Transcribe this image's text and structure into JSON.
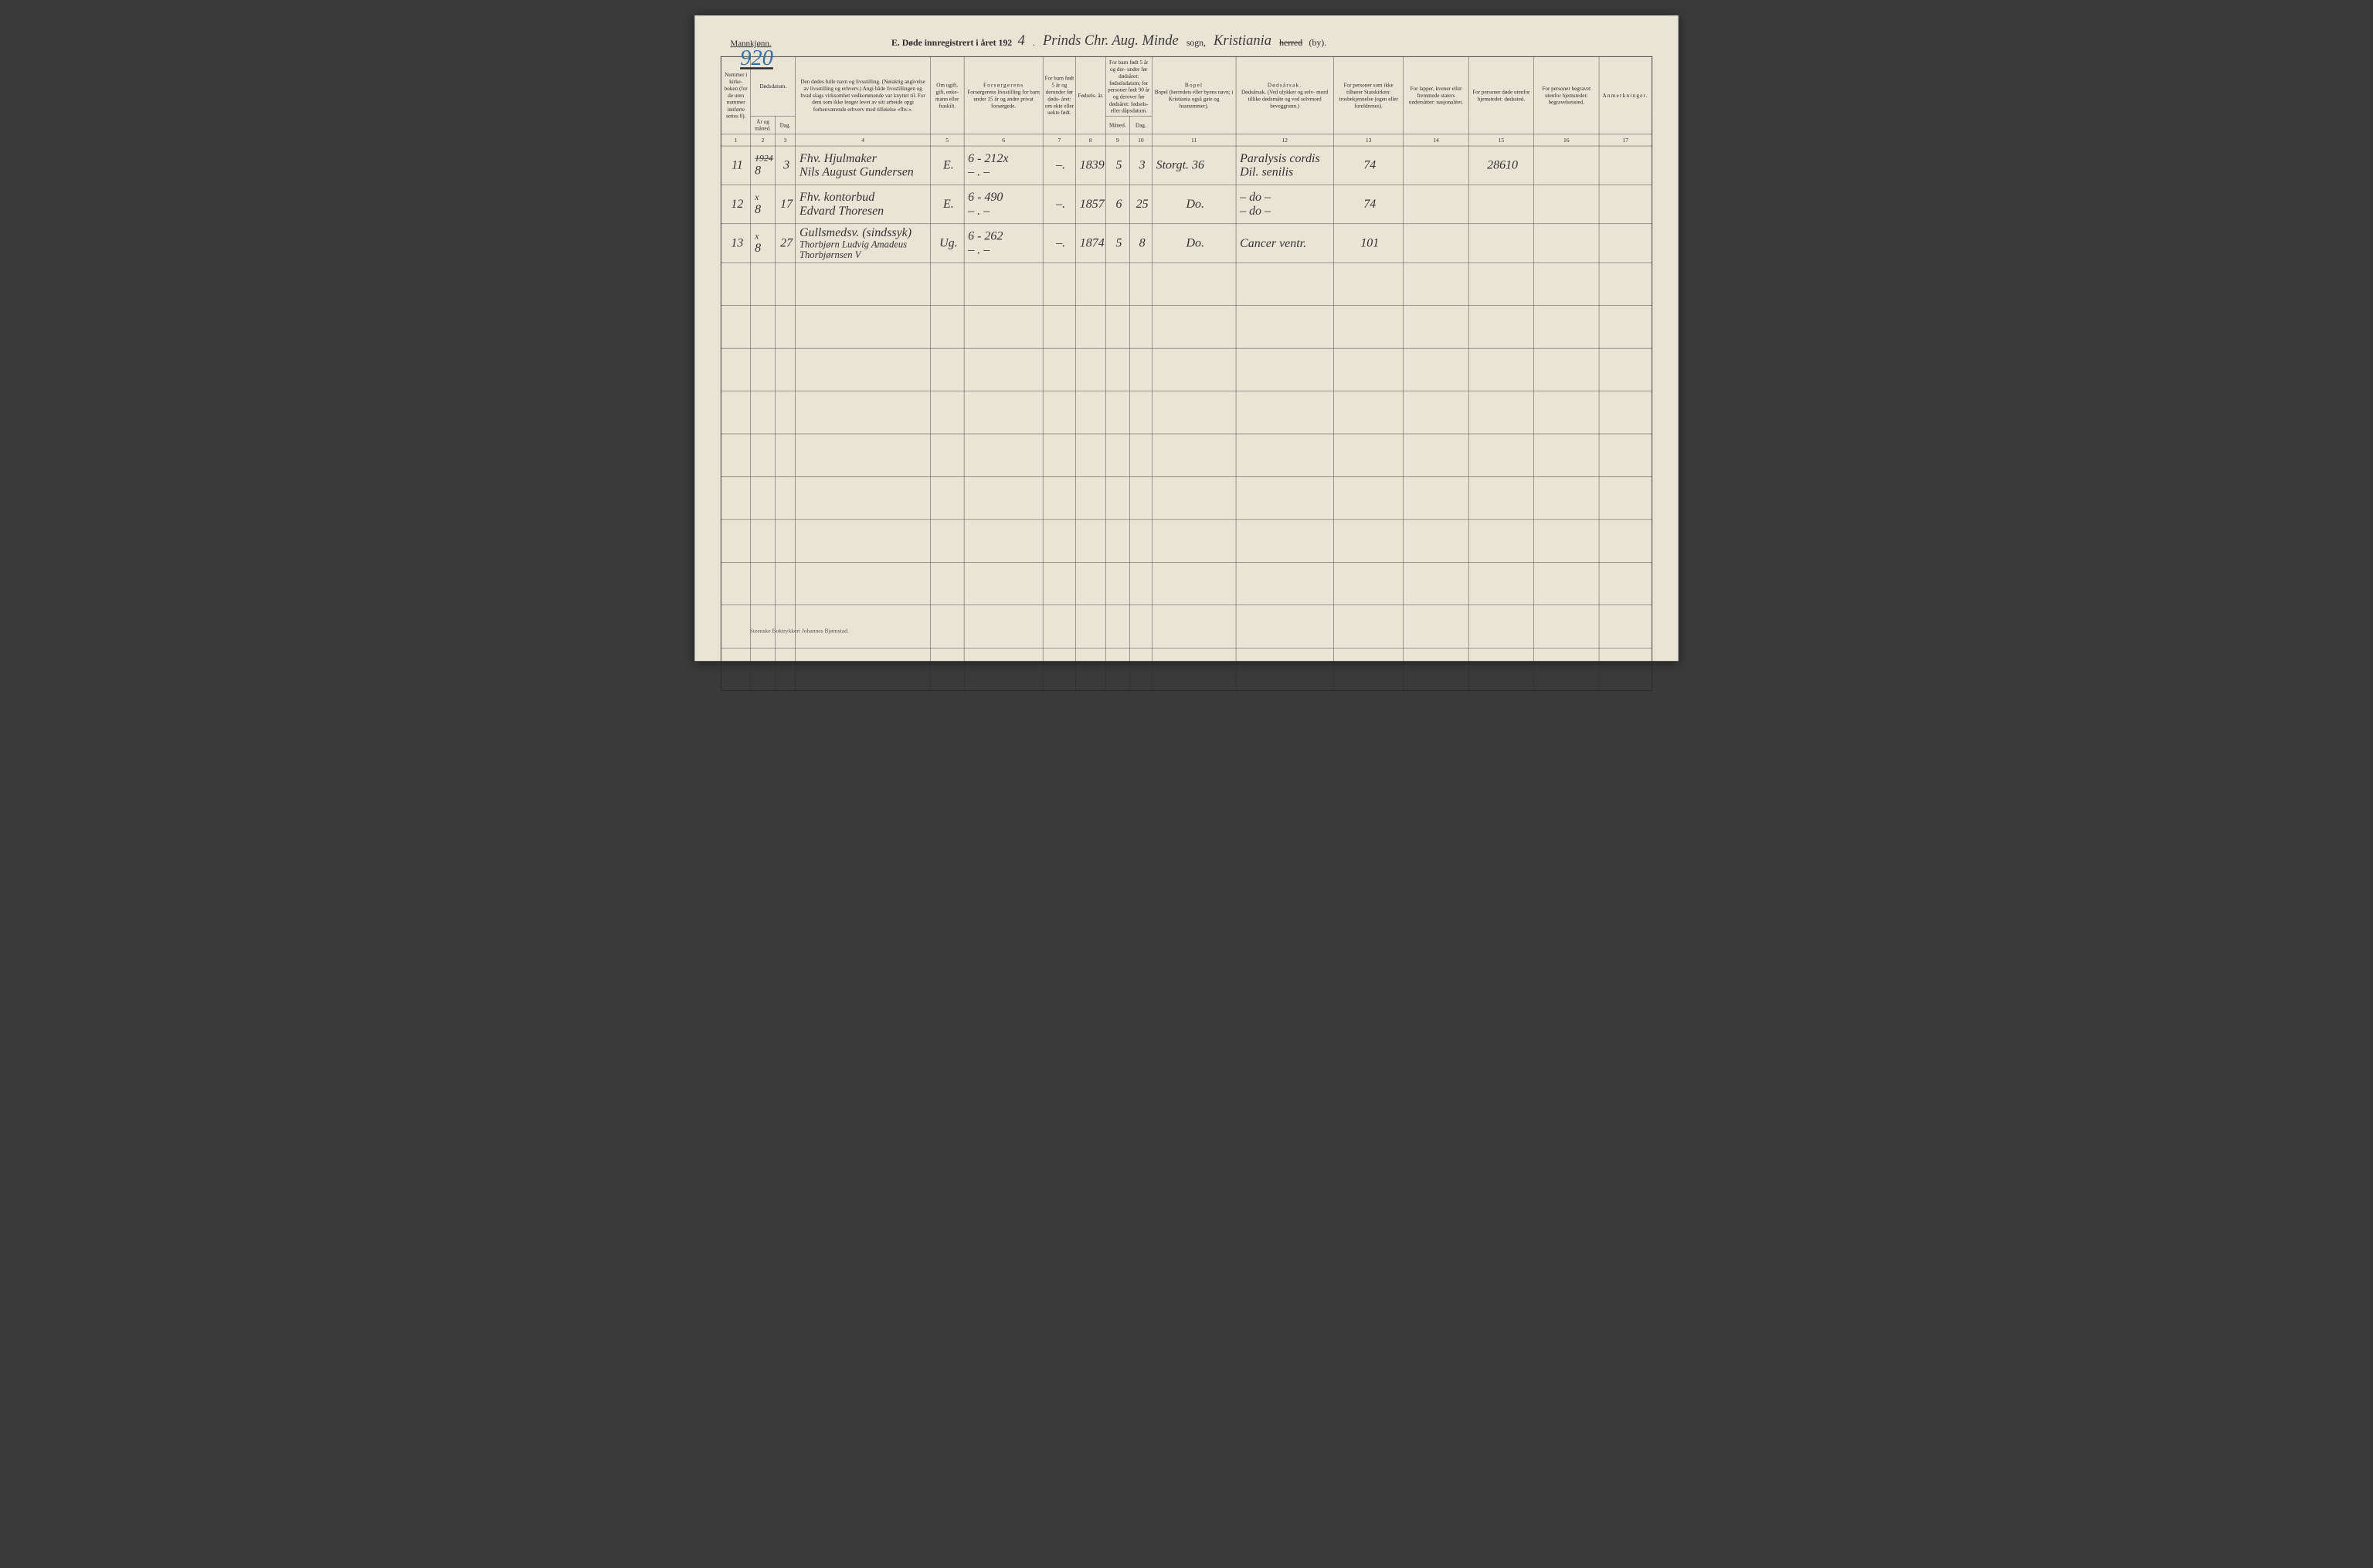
{
  "page": {
    "gender_label": "Mannkjønn.",
    "page_number": "920",
    "title_prefix": "E.  Døde innregistrert i året 192",
    "year_suffix": "4",
    "parish_hand": "Prinds Chr. Aug. Minde",
    "sogn_label": "sogn,",
    "city_hand": "Kristiania",
    "herred_label": "herred",
    "by_label": "(by).",
    "footer": "Steenske Boktrykkeri Johannes Bjørnstad."
  },
  "columns": {
    "c1": "Nummer i kirke- boken (for de uten nummer innførte settes 0).",
    "c2_top": "Dødsdatum.",
    "c2a": "År og måned.",
    "c2b": "Dag.",
    "c4": "Den dødes fulle navn og livsstilling.\n(Nøiaktig angivelse av livsstilling og erhverv.)\nAngi både livsstillingen og hvad slags virksomhet vedkommende var knyttet til.\nFor dem som ikke lenger levet av sitt arbeide opgi forhenværende erhverv med tilføielse «fhv.».",
    "c5": "Om ugift, gift, enke- mann eller fraskilt.",
    "c6": "Forsørgerens livsstilling\nfor barn under 15 år og andre privat forsørgede.",
    "c7": "For barn født 5 år og derunder før døds- året: om ekte eller uekte født.",
    "c8": "Fødsels- år.",
    "c9_top": "For barn født 5 år og der- under før dødsåret: fødselsdatum; for personer født 90 år og derover før dødsåret: fødsels- eller dåpsdatum.",
    "c9a": "Måned.",
    "c9b": "Dag.",
    "c11": "Bopel\n(herredets eller byens navn; i Kristiania også gate og husnummer).",
    "c12": "Dødsårsak.\n(Ved ulykker og selv- mord tillike dødsmåte og ved selvmord beveggrunn.)",
    "c13": "For personer som ikke tilhører Statskirken:\ntrosbekjennelse\n(egen eller foreldrenes).",
    "c14": "For lapper, kvener eller fremmede staters undersåtter:\nnasjonalitet.",
    "c15": "For personer døde utenfor hjemstedet:\ndødssted.",
    "c16": "For personer begravet utenfor hjemstedet:\nbegravelsessted.",
    "c17": "Anmerkninger."
  },
  "colnums": [
    "1",
    "2",
    "3",
    "4",
    "5",
    "6",
    "7",
    "8",
    "9",
    "10",
    "11",
    "12",
    "13",
    "14",
    "15",
    "16",
    "17"
  ],
  "rows": [
    {
      "num": "11",
      "year_strike": "1924",
      "month": "8",
      "day": "3",
      "name_line1": "Fhv. Hjulmaker",
      "name_line2": "Nils August Gundersen",
      "marital": "E.",
      "provider": "6 - 212x",
      "provider2": "– . –",
      "ekte": "–.",
      "birth_year": "1839",
      "b_month": "5",
      "b_day": "3",
      "bopel": "Storgt. 36",
      "cause_line1": "Paralysis cordis",
      "cause_line2": "Dil. senilis",
      "c13": "74",
      "c15": "28610"
    },
    {
      "num": "12",
      "year_strike": "x",
      "month": "8",
      "day": "17",
      "name_line1": "Fhv. kontorbud",
      "name_line2": "Edvard Thoresen",
      "marital": "E.",
      "provider": "6 - 490",
      "provider2": "– . –",
      "ekte": "–.",
      "birth_year": "1857",
      "b_month": "6",
      "b_day": "25",
      "bopel": "Do.",
      "cause_line1": "– do –",
      "cause_line2": "– do –",
      "c13": "74",
      "c15": ""
    },
    {
      "num": "13",
      "year_strike": "x",
      "month": "8",
      "day": "27",
      "name_line1": "Gullsmedsv. (sindssyk)",
      "name_line2": "Thorbjørn Ludvig Amadeus Thorbjørnsen V",
      "marital": "Ug.",
      "provider": "6 - 262",
      "provider2": "– . –",
      "ekte": "–.",
      "birth_year": "1874",
      "b_month": "5",
      "b_day": "8",
      "bopel": "Do.",
      "cause_line1": "",
      "cause_line2": "Cancer ventr.",
      "c13": "101",
      "c15": ""
    }
  ],
  "empty_row_count": 10,
  "style": {
    "page_bg": "#e8e5d6",
    "border_color": "#2a2a2a",
    "hand_color": "#333333",
    "pagenum_color": "#3a6fa8",
    "header_fontsize_pt": 12,
    "body_fontsize_pt": 14,
    "col_widths_pct": [
      3.2,
      2.6,
      2.2,
      14.5,
      3.6,
      8.5,
      3.5,
      3.2,
      2.6,
      2.4,
      9.0,
      10.5,
      7.5,
      7.0,
      7.0,
      7.0,
      5.7
    ]
  }
}
